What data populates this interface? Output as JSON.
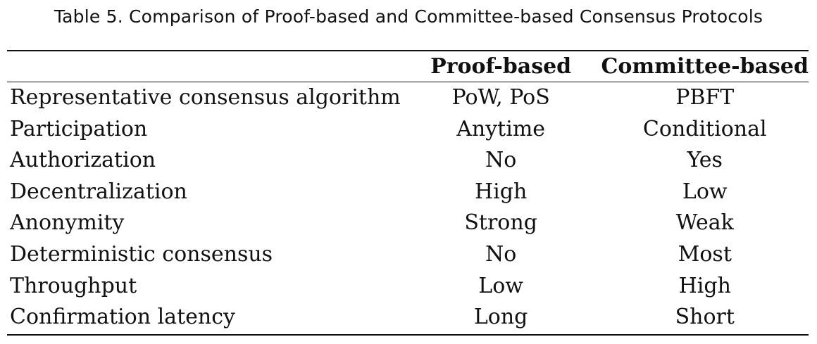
{
  "table": {
    "caption": "Table 5.  Comparison of Proof-based and Committee-based Consensus Protocols",
    "headers": [
      "",
      "Proof-based",
      "Committee-based"
    ],
    "rows": [
      {
        "label": "Representative consensus algorithm",
        "proof": "PoW, PoS",
        "committee": "PBFT"
      },
      {
        "label": "Participation",
        "proof": "Anytime",
        "committee": "Conditional"
      },
      {
        "label": "Authorization",
        "proof": "No",
        "committee": "Yes"
      },
      {
        "label": "Decentralization",
        "proof": "High",
        "committee": "Low"
      },
      {
        "label": "Anonymity",
        "proof": "Strong",
        "committee": "Weak"
      },
      {
        "label": "Deterministic consensus",
        "proof": "No",
        "committee": "Most"
      },
      {
        "label": "Throughput",
        "proof": "Low",
        "committee": "High"
      },
      {
        "label": "Confirmation latency",
        "proof": "Long",
        "committee": "Short"
      }
    ]
  }
}
